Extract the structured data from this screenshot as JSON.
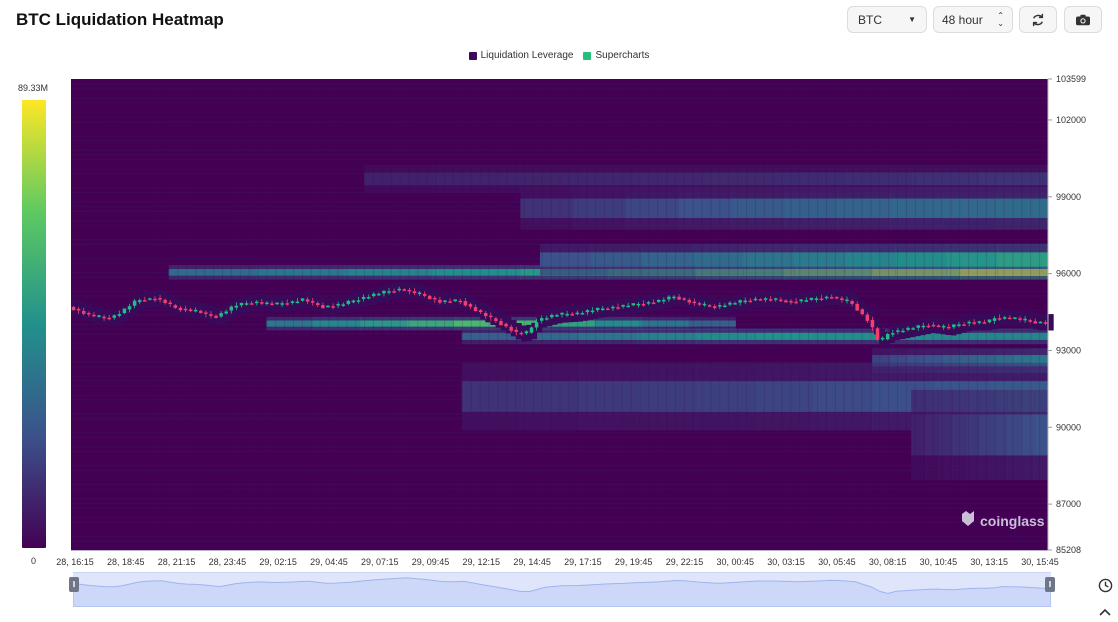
{
  "header": {
    "title": "BTC Liquidation Heatmap",
    "coin_select": "BTC",
    "range_select": "48 hour",
    "refresh_icon": "refresh-icon",
    "camera_icon": "camera-icon"
  },
  "legend": {
    "items": [
      {
        "label": "Liquidation Leverage",
        "color": "#3b0a5c"
      },
      {
        "label": "Supercharts",
        "color": "#22c07a"
      }
    ]
  },
  "scale": {
    "max_label": "89.33M",
    "min_label": "0"
  },
  "watermark": "coinglass",
  "colors": {
    "background": "#440154",
    "up": "#1fbf85",
    "down": "#f23f6b",
    "scale_top": "#fde725",
    "scale_bottom": "#440154"
  },
  "side_icons": {
    "clock": "clock-icon",
    "up": "chevron-up-icon"
  },
  "chart_data": {
    "type": "heatmap",
    "title": "BTC Liquidation Heatmap",
    "y_range": [
      85208,
      103599
    ],
    "y_ticks": [
      {
        "value": 103599,
        "label": "103599"
      },
      {
        "value": 102000,
        "label": "102000"
      },
      {
        "value": 99000,
        "label": "99000"
      },
      {
        "value": 96000,
        "label": "96000"
      },
      {
        "value": 93000,
        "label": "93000"
      },
      {
        "value": 90000,
        "label": "90000"
      },
      {
        "value": 87000,
        "label": "87000"
      },
      {
        "value": 85208,
        "label": "85208"
      }
    ],
    "x_ticks": [
      "28, 16:15",
      "28, 18:45",
      "28, 21:15",
      "28, 23:45",
      "29, 02:15",
      "29, 04:45",
      "29, 07:15",
      "29, 09:45",
      "29, 12:15",
      "29, 14:45",
      "29, 17:15",
      "29, 19:45",
      "29, 22:15",
      "30, 00:45",
      "30, 03:15",
      "30, 05:45",
      "30, 08:15",
      "30, 10:45",
      "30, 13:15",
      "30, 15:45"
    ],
    "scale_max": 89.33,
    "scale_unit": "M",
    "price_path": [
      [
        0,
        94700
      ],
      [
        2,
        94400
      ],
      [
        4,
        94250
      ],
      [
        5,
        94400
      ],
      [
        7,
        94950
      ],
      [
        9,
        95050
      ],
      [
        11,
        94650
      ],
      [
        13,
        94550
      ],
      [
        15,
        94300
      ],
      [
        17,
        94750
      ],
      [
        19,
        94900
      ],
      [
        21,
        94800
      ],
      [
        23,
        94900
      ],
      [
        24,
        95000
      ],
      [
        26,
        94700
      ],
      [
        28,
        94800
      ],
      [
        30,
        95050
      ],
      [
        32,
        95250
      ],
      [
        34,
        95400
      ],
      [
        36,
        95200
      ],
      [
        38,
        94900
      ],
      [
        40,
        94950
      ],
      [
        42,
        94500
      ],
      [
        44,
        94100
      ],
      [
        46,
        93650
      ],
      [
        47,
        93700
      ],
      [
        48,
        94200
      ],
      [
        50,
        94400
      ],
      [
        52,
        94450
      ],
      [
        54,
        94600
      ],
      [
        56,
        94700
      ],
      [
        58,
        94800
      ],
      [
        60,
        94900
      ],
      [
        62,
        95100
      ],
      [
        64,
        94850
      ],
      [
        66,
        94700
      ],
      [
        68,
        94850
      ],
      [
        70,
        95000
      ],
      [
        72,
        95000
      ],
      [
        74,
        94900
      ],
      [
        76,
        95000
      ],
      [
        78,
        95100
      ],
      [
        80,
        94900
      ],
      [
        81,
        94500
      ],
      [
        82,
        94100
      ],
      [
        83,
        93300
      ],
      [
        84,
        93700
      ],
      [
        86,
        93850
      ],
      [
        88,
        94000
      ],
      [
        90,
        93900
      ],
      [
        92,
        94100
      ],
      [
        94,
        94100
      ],
      [
        95,
        94300
      ],
      [
        97,
        94250
      ],
      [
        99,
        94100
      ]
    ],
    "bands": [
      {
        "price": 96050,
        "half_width": 130,
        "start": 10,
        "end": 100,
        "intensity": [
          0.35,
          0.55,
          1.0
        ]
      },
      {
        "price": 96550,
        "half_width": 280,
        "start": 48,
        "end": 100,
        "intensity": [
          0.25,
          0.4,
          0.55
        ]
      },
      {
        "price": 94050,
        "half_width": 120,
        "start": 20,
        "end": 68,
        "intensity": [
          0.4,
          0.7,
          0.3
        ]
      },
      {
        "price": 93550,
        "half_width": 140,
        "start": 40,
        "end": 100,
        "intensity": [
          0.3,
          0.5,
          0.45
        ]
      },
      {
        "price": 92600,
        "half_width": 220,
        "start": 82,
        "end": 100,
        "intensity": [
          0.2,
          0.3,
          0.4
        ]
      },
      {
        "price": 98550,
        "half_width": 380,
        "start": 46,
        "end": 100,
        "intensity": [
          0.15,
          0.3,
          0.35
        ]
      },
      {
        "price": 99700,
        "half_width": 250,
        "start": 30,
        "end": 100,
        "intensity": [
          0.1,
          0.12,
          0.15
        ]
      },
      {
        "price": 91200,
        "half_width": 600,
        "start": 40,
        "end": 100,
        "intensity": [
          0.15,
          0.2,
          0.28
        ]
      },
      {
        "price": 89700,
        "half_width": 800,
        "start": 86,
        "end": 100,
        "intensity": [
          0.1,
          0.18,
          0.25
        ]
      }
    ]
  }
}
